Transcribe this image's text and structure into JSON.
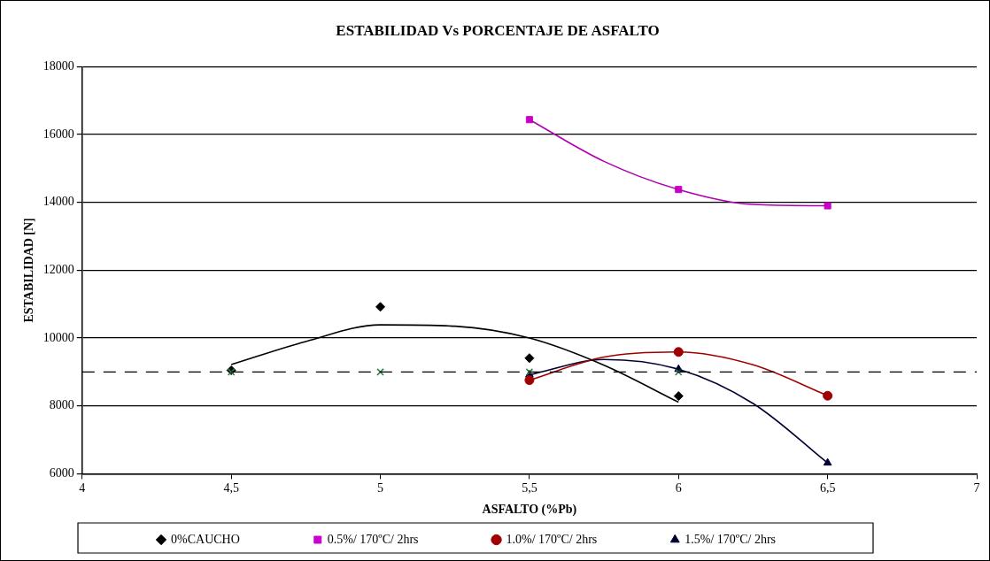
{
  "chart_data": {
    "type": "scatter",
    "title": "ESTABILIDAD Vs PORCENTAJE DE ASFALTO",
    "xlabel": "ASFALTO (%Pb)",
    "ylabel": "ESTABILIDAD [N]",
    "xlim": [
      4,
      7
    ],
    "xticks": [
      4,
      {
        "value": 4.5,
        "label": "4,5"
      },
      5,
      {
        "value": 5.5,
        "label": "5,5"
      },
      6,
      {
        "value": 6.5,
        "label": "6,5"
      },
      7
    ],
    "ylim": [
      6000,
      18000
    ],
    "yticks": [
      6000,
      8000,
      10000,
      12000,
      14000,
      16000,
      18000
    ],
    "grid": "y",
    "legend": "bottom",
    "ref_lines": [
      {
        "axis": "y",
        "value": 9000,
        "color": "#000000",
        "line_style": "dashed"
      }
    ],
    "series": [
      {
        "type": "line",
        "color": "#000000",
        "marker": "none",
        "x": [
          4.5,
          4.75,
          5,
          5.25,
          5.5,
          5.75,
          6
        ],
        "values": [
          9220,
          9900,
          10390,
          10350,
          10000,
          9200,
          8110
        ]
      },
      {
        "type": "line",
        "color": "#b000b0",
        "marker": "none",
        "x": [
          5.5,
          5.75,
          6,
          6.25,
          6.5
        ],
        "values": [
          16440,
          15210,
          14380,
          13940,
          13900
        ]
      },
      {
        "type": "line",
        "color": "#a00000",
        "marker": "none",
        "x": [
          5.5,
          5.75,
          6,
          6.25,
          6.5
        ],
        "values": [
          8760,
          9440,
          9590,
          9210,
          8300
        ]
      },
      {
        "type": "line",
        "color": "#000033",
        "marker": "none",
        "x": [
          5.5,
          5.75,
          6,
          6.25,
          6.5
        ],
        "values": [
          8920,
          9370,
          9080,
          8070,
          6320
        ]
      },
      {
        "type": "scatter",
        "color": "#2e7d4f",
        "marker": "cross",
        "x": [
          4.5,
          5,
          5.5,
          6
        ],
        "values": [
          9000,
          9000,
          9000,
          9000
        ]
      },
      {
        "type": "scatter",
        "name": "0%CAUCHO",
        "color": "#000000",
        "marker": "diamond",
        "x": [
          4.5,
          5,
          5.5,
          6
        ],
        "values": [
          9050,
          10920,
          9410,
          8290
        ]
      },
      {
        "type": "scatter",
        "name": "0.5%/ 170ºC/ 2hrs",
        "color": "#cc00cc",
        "marker": "square",
        "x": [
          5.5,
          6,
          6.5
        ],
        "values": [
          16440,
          14380,
          13900
        ]
      },
      {
        "type": "scatter",
        "name": "1.0%/ 170ºC/ 2hrs",
        "color": "#a00000",
        "marker": "circle",
        "x": [
          5.5,
          6,
          6.5
        ],
        "values": [
          8760,
          9590,
          8300
        ]
      },
      {
        "type": "scatter",
        "name": "1.5%/ 170ºC/ 2hrs",
        "color": "#000033",
        "marker": "triangle",
        "x": [
          5.5,
          6,
          6.5
        ],
        "values": [
          8920,
          9080,
          6320
        ]
      }
    ]
  }
}
